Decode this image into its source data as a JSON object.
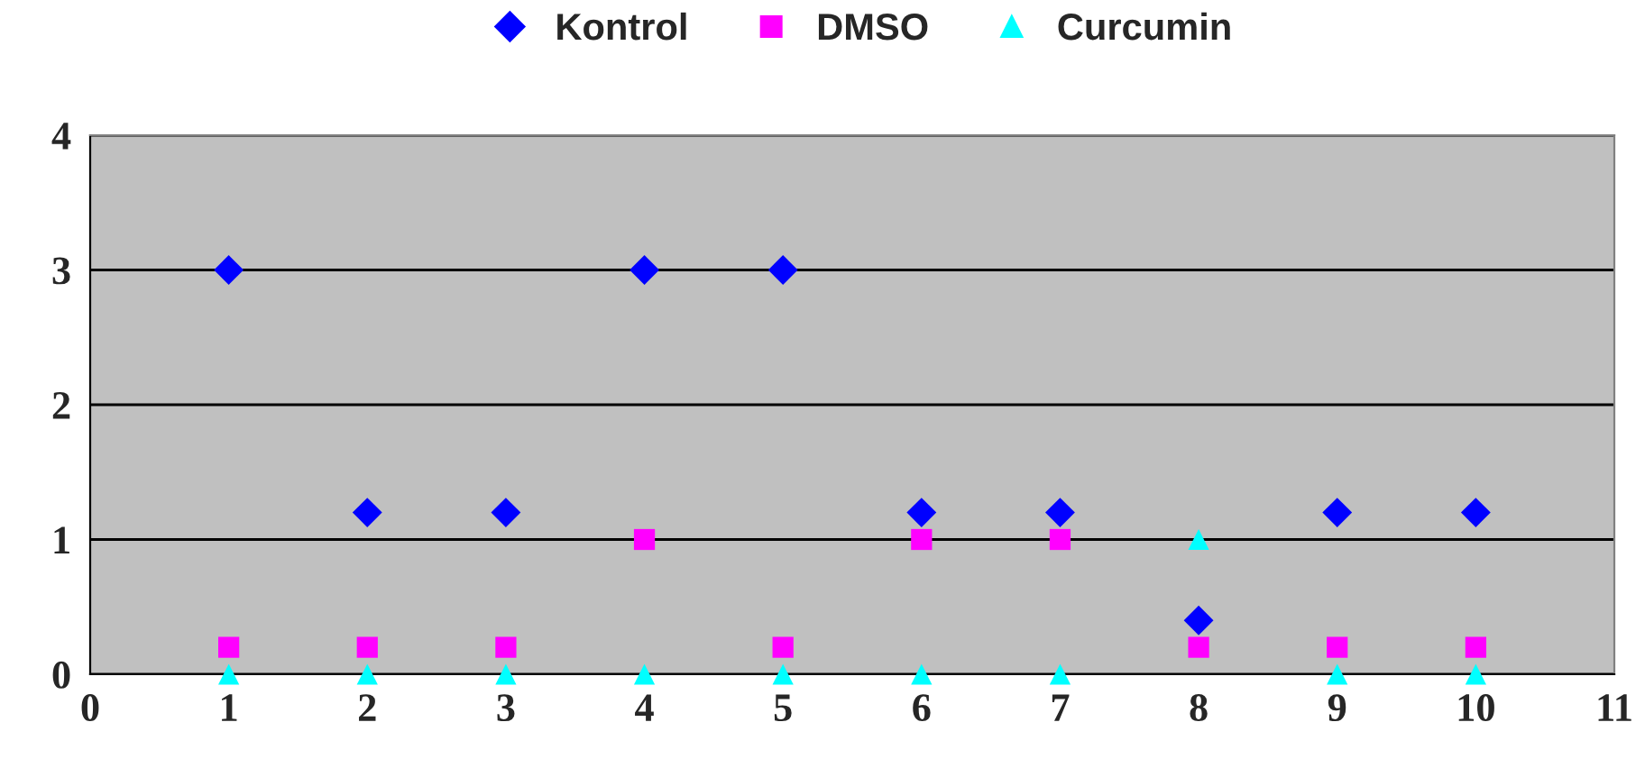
{
  "chart_data": {
    "type": "scatter",
    "x": [
      1,
      2,
      3,
      4,
      5,
      6,
      7,
      8,
      9,
      10
    ],
    "series": [
      {
        "name": "Kontrol",
        "color": "#0000ff",
        "marker": "diamond",
        "values": [
          3,
          1.2,
          1.2,
          3,
          3,
          1.2,
          1.2,
          0.4,
          1.2,
          1.2
        ]
      },
      {
        "name": "DMSO",
        "color": "#ff00ff",
        "marker": "square",
        "values": [
          0.2,
          0.2,
          0.2,
          1,
          0.2,
          1,
          1,
          0.2,
          0.2,
          0.2
        ]
      },
      {
        "name": "Curcumin",
        "color": "#00ffff",
        "marker": "triangle",
        "values": [
          0,
          0,
          0,
          0,
          0,
          0,
          0,
          1,
          0,
          0
        ]
      }
    ],
    "xlim": [
      0,
      11
    ],
    "xticks": [
      0,
      1,
      2,
      3,
      4,
      5,
      6,
      7,
      8,
      9,
      10,
      11
    ],
    "ylim": [
      0,
      4
    ],
    "yticks": [
      0,
      1,
      2,
      3,
      4
    ],
    "grid": "y",
    "legend": "top"
  }
}
